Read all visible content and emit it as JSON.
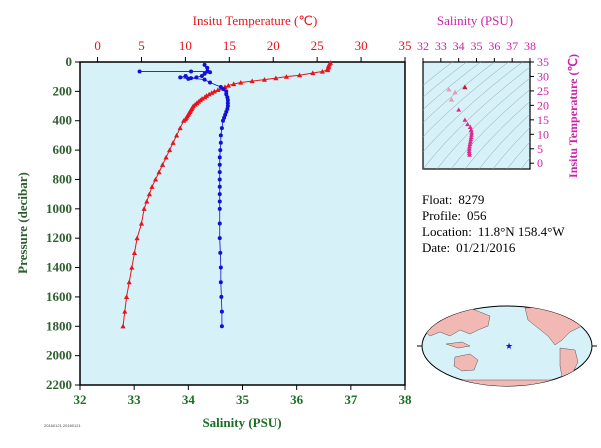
{
  "main_chart": {
    "top_axis_title": "Insitu Temperature (℃)",
    "bottom_axis_title": "Salinity (PSU)",
    "left_axis_title": "Pressure (decibar)",
    "temp_ticks": [
      "0",
      "5",
      "10",
      "15",
      "20",
      "25",
      "30",
      "35"
    ],
    "sal_ticks": [
      "32",
      "33",
      "34",
      "35",
      "36",
      "37",
      "38"
    ],
    "pres_ticks": [
      "0",
      "200",
      "400",
      "600",
      "800",
      "1000",
      "1200",
      "1400",
      "1600",
      "1800",
      "2000",
      "2200"
    ],
    "footer_text": "20160121 20160121"
  },
  "ts_chart": {
    "top_axis_title": "Salinity (PSU)",
    "right_axis_title": "Insitu Temperature (℃)",
    "sal_ticks": [
      "32",
      "33",
      "34",
      "35",
      "36",
      "37",
      "38"
    ],
    "temp_ticks": [
      "0",
      "5",
      "10",
      "15",
      "20",
      "25",
      "30",
      "35"
    ]
  },
  "float_info": {
    "float_label": "Float:",
    "float_value": "8279",
    "profile_label": "Profile:",
    "profile_value": "056",
    "location_label": "Location:",
    "location_value": "11.8°N  158.4°W",
    "date_label": "Date:",
    "date_value": "01/21/2016"
  },
  "colors": {
    "temperature": "#e8131b",
    "salinity": "#1010d8",
    "ts_axis": "#cc22aa",
    "plot_bg": "#d7f1f8",
    "axis_label": "#2f5f2f"
  },
  "chart_data": [
    {
      "type": "line",
      "name": "temperature-profile",
      "x_axis": "Insitu Temperature",
      "y_axis": "Pressure",
      "xlim": [
        -2,
        35
      ],
      "ylim": [
        2200,
        0
      ],
      "points": [
        [
          26.5,
          5
        ],
        [
          26.4,
          15
        ],
        [
          26.3,
          25
        ],
        [
          26.3,
          35
        ],
        [
          26.2,
          45
        ],
        [
          26.2,
          55
        ],
        [
          25.6,
          65
        ],
        [
          24.5,
          75
        ],
        [
          23.0,
          90
        ],
        [
          21.5,
          100
        ],
        [
          20.3,
          110
        ],
        [
          19.0,
          120
        ],
        [
          17.6,
          130
        ],
        [
          16.3,
          140
        ],
        [
          15.5,
          150
        ],
        [
          14.9,
          160
        ],
        [
          14.5,
          170
        ],
        [
          14.1,
          180
        ],
        [
          13.7,
          190
        ],
        [
          13.3,
          200
        ],
        [
          13.0,
          210
        ],
        [
          12.7,
          220
        ],
        [
          12.4,
          230
        ],
        [
          12.2,
          240
        ],
        [
          11.9,
          250
        ],
        [
          11.7,
          260
        ],
        [
          11.5,
          270
        ],
        [
          11.3,
          280
        ],
        [
          11.1,
          290
        ],
        [
          10.9,
          300
        ],
        [
          10.8,
          310
        ],
        [
          10.7,
          320
        ],
        [
          10.6,
          330
        ],
        [
          10.5,
          340
        ],
        [
          10.4,
          350
        ],
        [
          10.3,
          360
        ],
        [
          10.2,
          370
        ],
        [
          10.1,
          380
        ],
        [
          10.0,
          390
        ],
        [
          9.8,
          400
        ],
        [
          9.4,
          450
        ],
        [
          9.0,
          500
        ],
        [
          8.6,
          550
        ],
        [
          8.2,
          600
        ],
        [
          7.8,
          650
        ],
        [
          7.4,
          700
        ],
        [
          7.0,
          750
        ],
        [
          6.6,
          800
        ],
        [
          6.2,
          850
        ],
        [
          5.9,
          900
        ],
        [
          5.6,
          950
        ],
        [
          5.3,
          1000
        ],
        [
          5.0,
          1100
        ],
        [
          4.5,
          1200
        ],
        [
          4.2,
          1300
        ],
        [
          3.9,
          1400
        ],
        [
          3.6,
          1500
        ],
        [
          3.3,
          1600
        ],
        [
          3.1,
          1700
        ],
        [
          2.9,
          1800
        ]
      ]
    },
    {
      "type": "line",
      "name": "salinity-profile",
      "x_axis": "Salinity",
      "y_axis": "Pressure",
      "xlim": [
        32,
        38
      ],
      "ylim": [
        2200,
        0
      ],
      "points": [
        [
          33.1,
          65
        ],
        [
          34.05,
          65
        ],
        [
          34.35,
          65
        ],
        [
          34.3,
          20
        ],
        [
          34.35,
          40
        ],
        [
          34.4,
          70
        ],
        [
          34.3,
          80
        ],
        [
          34.25,
          95
        ],
        [
          34.15,
          105
        ],
        [
          34.0,
          115
        ],
        [
          33.85,
          105
        ],
        [
          33.95,
          95
        ],
        [
          34.05,
          110
        ],
        [
          34.3,
          120
        ],
        [
          34.4,
          140
        ],
        [
          34.6,
          170
        ],
        [
          34.65,
          185
        ],
        [
          34.7,
          200
        ],
        [
          34.7,
          220
        ],
        [
          34.72,
          240
        ],
        [
          34.73,
          260
        ],
        [
          34.73,
          280
        ],
        [
          34.73,
          300
        ],
        [
          34.72,
          320
        ],
        [
          34.7,
          340
        ],
        [
          34.68,
          360
        ],
        [
          34.66,
          380
        ],
        [
          34.64,
          400
        ],
        [
          34.62,
          450
        ],
        [
          34.6,
          500
        ],
        [
          34.6,
          550
        ],
        [
          34.59,
          600
        ],
        [
          34.58,
          650
        ],
        [
          34.58,
          700
        ],
        [
          34.58,
          750
        ],
        [
          34.58,
          800
        ],
        [
          34.58,
          850
        ],
        [
          34.58,
          900
        ],
        [
          34.58,
          950
        ],
        [
          34.58,
          1000
        ],
        [
          34.58,
          1100
        ],
        [
          34.58,
          1200
        ],
        [
          34.59,
          1300
        ],
        [
          34.6,
          1400
        ],
        [
          34.6,
          1500
        ],
        [
          34.61,
          1600
        ],
        [
          34.62,
          1700
        ],
        [
          34.62,
          1800
        ]
      ]
    },
    {
      "type": "scatter",
      "name": "ts-diagram",
      "x_axis": "Salinity",
      "y_axis": "Insitu Temperature",
      "xlim": [
        32,
        38
      ],
      "ylim": [
        -2,
        35
      ],
      "points": [
        [
          34.35,
          26.3
        ],
        [
          33.8,
          24.5
        ],
        [
          33.45,
          25.5
        ],
        [
          33.6,
          22.0
        ],
        [
          34.0,
          18.5
        ],
        [
          34.35,
          15.0
        ],
        [
          34.5,
          13.5
        ],
        [
          34.65,
          12.5
        ],
        [
          34.7,
          11.5
        ],
        [
          34.73,
          10.6
        ],
        [
          34.72,
          9.8
        ],
        [
          34.7,
          9.0
        ],
        [
          34.68,
          8.2
        ],
        [
          34.66,
          7.4
        ],
        [
          34.63,
          6.6
        ],
        [
          34.61,
          5.8
        ],
        [
          34.6,
          5.0
        ],
        [
          34.59,
          4.2
        ],
        [
          34.6,
          3.5
        ],
        [
          34.61,
          2.9
        ]
      ]
    }
  ]
}
